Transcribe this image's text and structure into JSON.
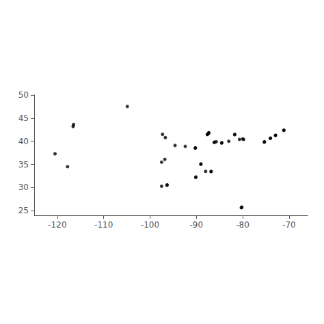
{
  "chart_data": {
    "type": "scatter",
    "x": [
      -104.9,
      -116.5,
      -116.6,
      -117.8,
      -120.5,
      -97.3,
      -96.7,
      -87.3,
      -87.35,
      -87.4,
      -87.6,
      -87.65,
      -86.1,
      -86.15,
      -85.7,
      -84.5,
      -84.55,
      -83.0,
      -81.7,
      -81.75,
      -80.7,
      -80.0,
      -79.8,
      -75.3,
      -75.35,
      -74.0,
      -74.05,
      -72.9,
      -72.95,
      -80.2,
      -80.25,
      -80.3,
      -86.8,
      -86.85,
      -88.0,
      -90.2,
      -90.25,
      -92.4,
      -94.6,
      -89.0,
      -89.05,
      -90.1,
      -90.15,
      -97.5,
      -96.8,
      -97.5,
      -96.3,
      -96.35,
      -71.1,
      -71.15
    ],
    "values": [
      47.5,
      43.6,
      43.2,
      34.5,
      37.3,
      41.5,
      40.8,
      41.85,
      41.78,
      41.7,
      41.5,
      41.45,
      39.8,
      39.75,
      39.9,
      39.7,
      39.6,
      40.0,
      41.5,
      41.4,
      40.4,
      40.5,
      40.4,
      39.9,
      39.8,
      40.7,
      40.6,
      41.3,
      41.25,
      25.8,
      25.7,
      25.65,
      33.5,
      33.45,
      33.5,
      38.6,
      38.5,
      38.9,
      39.1,
      35.1,
      35.05,
      32.3,
      32.2,
      35.5,
      36.1,
      30.3,
      30.6,
      30.5,
      42.4,
      42.35
    ],
    "color": "#000000",
    "marker": "circle",
    "xlim": [
      -125,
      -66
    ],
    "ylim": [
      24,
      50
    ],
    "xticks": [
      -120,
      -110,
      -100,
      -90,
      -80,
      -70
    ],
    "yticks": [
      25,
      30,
      35,
      40,
      45,
      50
    ],
    "grid": false
  }
}
